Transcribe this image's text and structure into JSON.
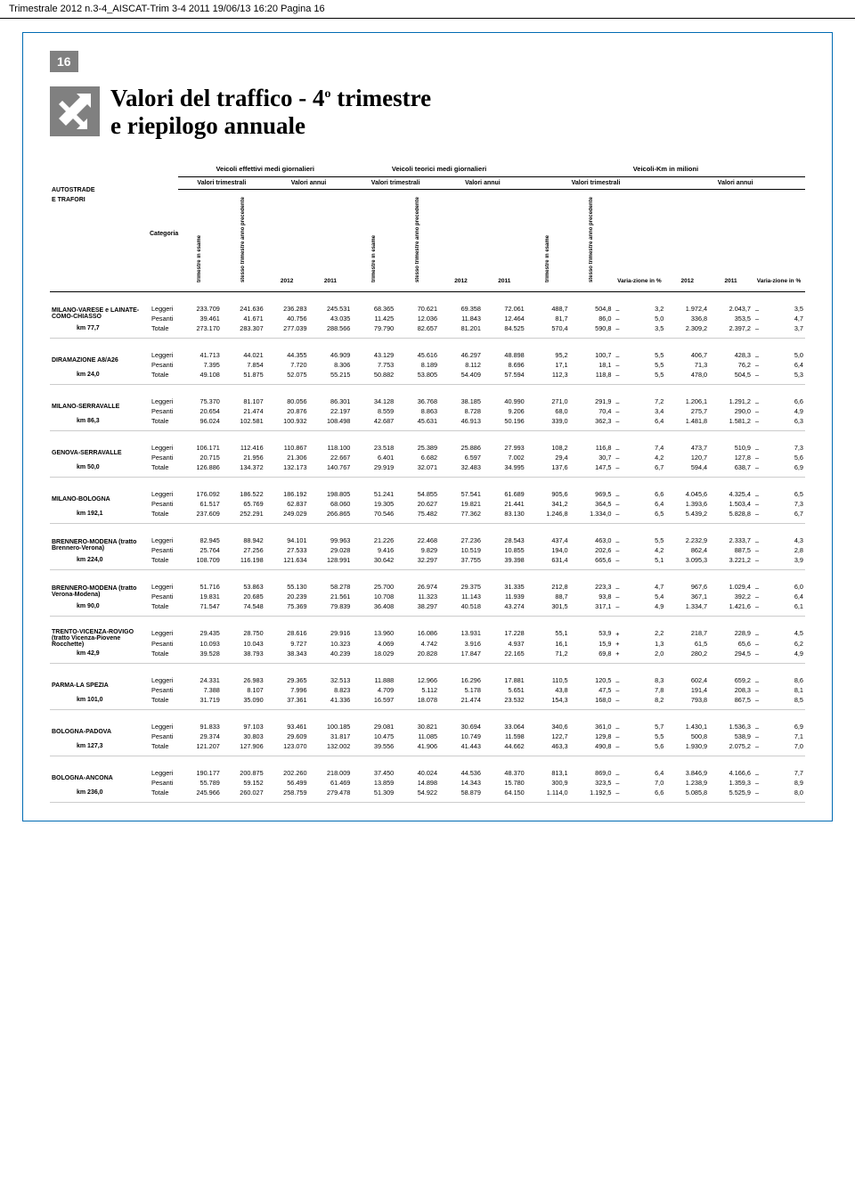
{
  "header_bar": "Trimestrale 2012 n.3-4_AISCAT-Trim 3-4 2011  19/06/13  16:20  Pagina 16",
  "page_number": "16",
  "title_line1": "Valori del traffico - 4",
  "title_sup": "o",
  "title_line1b": " trimestre",
  "title_line2": "e riepilogo annuale",
  "col_group_labels": {
    "g1": "Veicoli effettivi medi giornalieri",
    "g2": "Veicoli teorici medi giornalieri",
    "g3": "Veicoli-Km in milioni"
  },
  "sub_labels": {
    "valori_trim": "Valori trimestrali",
    "valori_ann": "Valori annui"
  },
  "left_header1": "AUTOSTRADE",
  "left_header2": "E TRAFORI",
  "categoria": "Categoria",
  "col_headers": {
    "trim_esame": "trimestre in esame",
    "stesso_trim": "stesso trimestre anno precedente",
    "y2012": "2012",
    "y2011": "2011",
    "varia": "Varia-zione in %"
  },
  "sections": [
    {
      "name": "MILANO-VARESE e LAINATE-COMO-CHIASSO",
      "km": "km 77,7",
      "rows": [
        {
          "cat": "Leggeri",
          "v": [
            "233.709",
            "241.636",
            "236.283",
            "245.531",
            "68.365",
            "70.621",
            "69.358",
            "72.061",
            "488,7",
            "504,8",
            "–",
            "3,2",
            "1.972,4",
            "2.043,7",
            "–",
            "3,5"
          ]
        },
        {
          "cat": "Pesanti",
          "v": [
            "39.461",
            "41.671",
            "40.756",
            "43.035",
            "11.425",
            "12.036",
            "11.843",
            "12.464",
            "81,7",
            "86,0",
            "–",
            "5,0",
            "336,8",
            "353,5",
            "–",
            "4,7"
          ]
        },
        {
          "cat": "Totale",
          "v": [
            "273.170",
            "283.307",
            "277.039",
            "288.566",
            "79.790",
            "82.657",
            "81.201",
            "84.525",
            "570,4",
            "590,8",
            "–",
            "3,5",
            "2.309,2",
            "2.397,2",
            "–",
            "3,7"
          ]
        }
      ]
    },
    {
      "name": "DIRAMAZIONE A8/A26",
      "km": "km 24,0",
      "rows": [
        {
          "cat": "Leggeri",
          "v": [
            "41.713",
            "44.021",
            "44.355",
            "46.909",
            "43.129",
            "45.616",
            "46.297",
            "48.898",
            "95,2",
            "100,7",
            "–",
            "5,5",
            "406,7",
            "428,3",
            "–",
            "5,0"
          ]
        },
        {
          "cat": "Pesanti",
          "v": [
            "7.395",
            "7.854",
            "7.720",
            "8.306",
            "7.753",
            "8.189",
            "8.112",
            "8.696",
            "17,1",
            "18,1",
            "–",
            "5,5",
            "71,3",
            "76,2",
            "–",
            "6,4"
          ]
        },
        {
          "cat": "Totale",
          "v": [
            "49.108",
            "51.875",
            "52.075",
            "55.215",
            "50.882",
            "53.805",
            "54.409",
            "57.594",
            "112,3",
            "118,8",
            "–",
            "5,5",
            "478,0",
            "504,5",
            "–",
            "5,3"
          ]
        }
      ]
    },
    {
      "name": "MILANO-SERRAVALLE",
      "km": "km 86,3",
      "rows": [
        {
          "cat": "Leggeri",
          "v": [
            "75.370",
            "81.107",
            "80.056",
            "86.301",
            "34.128",
            "36.768",
            "38.185",
            "40.990",
            "271,0",
            "291,9",
            "–",
            "7,2",
            "1.206,1",
            "1.291,2",
            "–",
            "6,6"
          ]
        },
        {
          "cat": "Pesanti",
          "v": [
            "20.654",
            "21.474",
            "20.876",
            "22.197",
            "8.559",
            "8.863",
            "8.728",
            "9.206",
            "68,0",
            "70,4",
            "–",
            "3,4",
            "275,7",
            "290,0",
            "–",
            "4,9"
          ]
        },
        {
          "cat": "Totale",
          "v": [
            "96.024",
            "102.581",
            "100.932",
            "108.498",
            "42.687",
            "45.631",
            "46.913",
            "50.196",
            "339,0",
            "362,3",
            "–",
            "6,4",
            "1.481,8",
            "1.581,2",
            "–",
            "6,3"
          ]
        }
      ]
    },
    {
      "name": "GENOVA-SERRAVALLE",
      "km": "km 50,0",
      "rows": [
        {
          "cat": "Leggeri",
          "v": [
            "106.171",
            "112.416",
            "110.867",
            "118.100",
            "23.518",
            "25.389",
            "25.886",
            "27.993",
            "108,2",
            "116,8",
            "–",
            "7,4",
            "473,7",
            "510,9",
            "–",
            "7,3"
          ]
        },
        {
          "cat": "Pesanti",
          "v": [
            "20.715",
            "21.956",
            "21.306",
            "22.667",
            "6.401",
            "6.682",
            "6.597",
            "7.002",
            "29,4",
            "30,7",
            "–",
            "4,2",
            "120,7",
            "127,8",
            "–",
            "5,6"
          ]
        },
        {
          "cat": "Totale",
          "v": [
            "126.886",
            "134.372",
            "132.173",
            "140.767",
            "29.919",
            "32.071",
            "32.483",
            "34.995",
            "137,6",
            "147,5",
            "–",
            "6,7",
            "594,4",
            "638,7",
            "–",
            "6,9"
          ]
        }
      ]
    },
    {
      "name": "MILANO-BOLOGNA",
      "km": "km 192,1",
      "rows": [
        {
          "cat": "Leggeri",
          "v": [
            "176.092",
            "186.522",
            "186.192",
            "198.805",
            "51.241",
            "54.855",
            "57.541",
            "61.689",
            "905,6",
            "969,5",
            "–",
            "6,6",
            "4.045,6",
            "4.325,4",
            "–",
            "6,5"
          ]
        },
        {
          "cat": "Pesanti",
          "v": [
            "61.517",
            "65.769",
            "62.837",
            "68.060",
            "19.305",
            "20.627",
            "19.821",
            "21.441",
            "341,2",
            "364,5",
            "–",
            "6,4",
            "1.393,6",
            "1.503,4",
            "–",
            "7,3"
          ]
        },
        {
          "cat": "Totale",
          "v": [
            "237.609",
            "252.291",
            "249.029",
            "266.865",
            "70.546",
            "75.482",
            "77.362",
            "83.130",
            "1.246,8",
            "1.334,0",
            "–",
            "6,5",
            "5.439,2",
            "5.828,8",
            "–",
            "6,7"
          ]
        }
      ]
    },
    {
      "name": "BRENNERO-MODENA (tratto Brennero-Verona)",
      "km": "km 224,0",
      "rows": [
        {
          "cat": "Leggeri",
          "v": [
            "82.945",
            "88.942",
            "94.101",
            "99.963",
            "21.226",
            "22.468",
            "27.236",
            "28.543",
            "437,4",
            "463,0",
            "–",
            "5,5",
            "2.232,9",
            "2.333,7",
            "–",
            "4,3"
          ]
        },
        {
          "cat": "Pesanti",
          "v": [
            "25.764",
            "27.256",
            "27.533",
            "29.028",
            "9.416",
            "9.829",
            "10.519",
            "10.855",
            "194,0",
            "202,6",
            "–",
            "4,2",
            "862,4",
            "887,5",
            "–",
            "2,8"
          ]
        },
        {
          "cat": "Totale",
          "v": [
            "108.709",
            "116.198",
            "121.634",
            "128.991",
            "30.642",
            "32.297",
            "37.755",
            "39.398",
            "631,4",
            "665,6",
            "–",
            "5,1",
            "3.095,3",
            "3.221,2",
            "–",
            "3,9"
          ]
        }
      ]
    },
    {
      "name": "BRENNERO-MODENA (tratto Verona-Modena)",
      "km": "km 90,0",
      "rows": [
        {
          "cat": "Leggeri",
          "v": [
            "51.716",
            "53.863",
            "55.130",
            "58.278",
            "25.700",
            "26.974",
            "29.375",
            "31.335",
            "212,8",
            "223,3",
            "–",
            "4,7",
            "967,6",
            "1.029,4",
            "–",
            "6,0"
          ]
        },
        {
          "cat": "Pesanti",
          "v": [
            "19.831",
            "20.685",
            "20.239",
            "21.561",
            "10.708",
            "11.323",
            "11.143",
            "11.939",
            "88,7",
            "93,8",
            "–",
            "5,4",
            "367,1",
            "392,2",
            "–",
            "6,4"
          ]
        },
        {
          "cat": "Totale",
          "v": [
            "71.547",
            "74.548",
            "75.369",
            "79.839",
            "36.408",
            "38.297",
            "40.518",
            "43.274",
            "301,5",
            "317,1",
            "–",
            "4,9",
            "1.334,7",
            "1.421,6",
            "–",
            "6,1"
          ]
        }
      ]
    },
    {
      "name": "TRENTO-VICENZA-ROVIGO (tratto Vicenza-Piovene Rocchette)",
      "km": "km 42,9",
      "rows": [
        {
          "cat": "Leggeri",
          "v": [
            "29.435",
            "28.750",
            "28.616",
            "29.916",
            "13.960",
            "16.086",
            "13.931",
            "17.228",
            "55,1",
            "53,9",
            "+",
            "2,2",
            "218,7",
            "228,9",
            "–",
            "4,5"
          ]
        },
        {
          "cat": "Pesanti",
          "v": [
            "10.093",
            "10.043",
            "9.727",
            "10.323",
            "4.069",
            "4.742",
            "3.916",
            "4.937",
            "16,1",
            "15,9",
            "+",
            "1,3",
            "61,5",
            "65,6",
            "–",
            "6,2"
          ]
        },
        {
          "cat": "Totale",
          "v": [
            "39.528",
            "38.793",
            "38.343",
            "40.239",
            "18.029",
            "20.828",
            "17.847",
            "22.165",
            "71,2",
            "69,8",
            "+",
            "2,0",
            "280,2",
            "294,5",
            "–",
            "4,9"
          ]
        }
      ]
    },
    {
      "name": "PARMA-LA SPEZIA",
      "km": "km 101,0",
      "rows": [
        {
          "cat": "Leggeri",
          "v": [
            "24.331",
            "26.983",
            "29.365",
            "32.513",
            "11.888",
            "12.966",
            "16.296",
            "17.881",
            "110,5",
            "120,5",
            "–",
            "8,3",
            "602,4",
            "659,2",
            "–",
            "8,6"
          ]
        },
        {
          "cat": "Pesanti",
          "v": [
            "7.388",
            "8.107",
            "7.996",
            "8.823",
            "4.709",
            "5.112",
            "5.178",
            "5.651",
            "43,8",
            "47,5",
            "–",
            "7,8",
            "191,4",
            "208,3",
            "–",
            "8,1"
          ]
        },
        {
          "cat": "Totale",
          "v": [
            "31.719",
            "35.090",
            "37.361",
            "41.336",
            "16.597",
            "18.078",
            "21.474",
            "23.532",
            "154,3",
            "168,0",
            "–",
            "8,2",
            "793,8",
            "867,5",
            "–",
            "8,5"
          ]
        }
      ]
    },
    {
      "name": "BOLOGNA-PADOVA",
      "km": "km 127,3",
      "rows": [
        {
          "cat": "Leggeri",
          "v": [
            "91.833",
            "97.103",
            "93.461",
            "100.185",
            "29.081",
            "30.821",
            "30.694",
            "33.064",
            "340,6",
            "361,0",
            "–",
            "5,7",
            "1.430,1",
            "1.536,3",
            "–",
            "6,9"
          ]
        },
        {
          "cat": "Pesanti",
          "v": [
            "29.374",
            "30.803",
            "29.609",
            "31.817",
            "10.475",
            "11.085",
            "10.749",
            "11.598",
            "122,7",
            "129,8",
            "–",
            "5,5",
            "500,8",
            "538,9",
            "–",
            "7,1"
          ]
        },
        {
          "cat": "Totale",
          "v": [
            "121.207",
            "127.906",
            "123.070",
            "132.002",
            "39.556",
            "41.906",
            "41.443",
            "44.662",
            "463,3",
            "490,8",
            "–",
            "5,6",
            "1.930,9",
            "2.075,2",
            "–",
            "7,0"
          ]
        }
      ]
    },
    {
      "name": "BOLOGNA-ANCONA",
      "km": "km 236,0",
      "rows": [
        {
          "cat": "Leggeri",
          "v": [
            "190.177",
            "200.875",
            "202.260",
            "218.009",
            "37.450",
            "40.024",
            "44.536",
            "48.370",
            "813,1",
            "869,0",
            "–",
            "6,4",
            "3.846,9",
            "4.166,6",
            "–",
            "7,7"
          ]
        },
        {
          "cat": "Pesanti",
          "v": [
            "55.789",
            "59.152",
            "56.499",
            "61.469",
            "13.859",
            "14.898",
            "14.343",
            "15.780",
            "300,9",
            "323,5",
            "–",
            "7,0",
            "1.238,9",
            "1.359,3",
            "–",
            "8,9"
          ]
        },
        {
          "cat": "Totale",
          "v": [
            "245.966",
            "260.027",
            "258.759",
            "279.478",
            "51.309",
            "54.922",
            "58.879",
            "64.150",
            "1.114,0",
            "1.192,5",
            "–",
            "6,6",
            "5.085,8",
            "5.525,9",
            "–",
            "8,0"
          ]
        }
      ]
    }
  ]
}
